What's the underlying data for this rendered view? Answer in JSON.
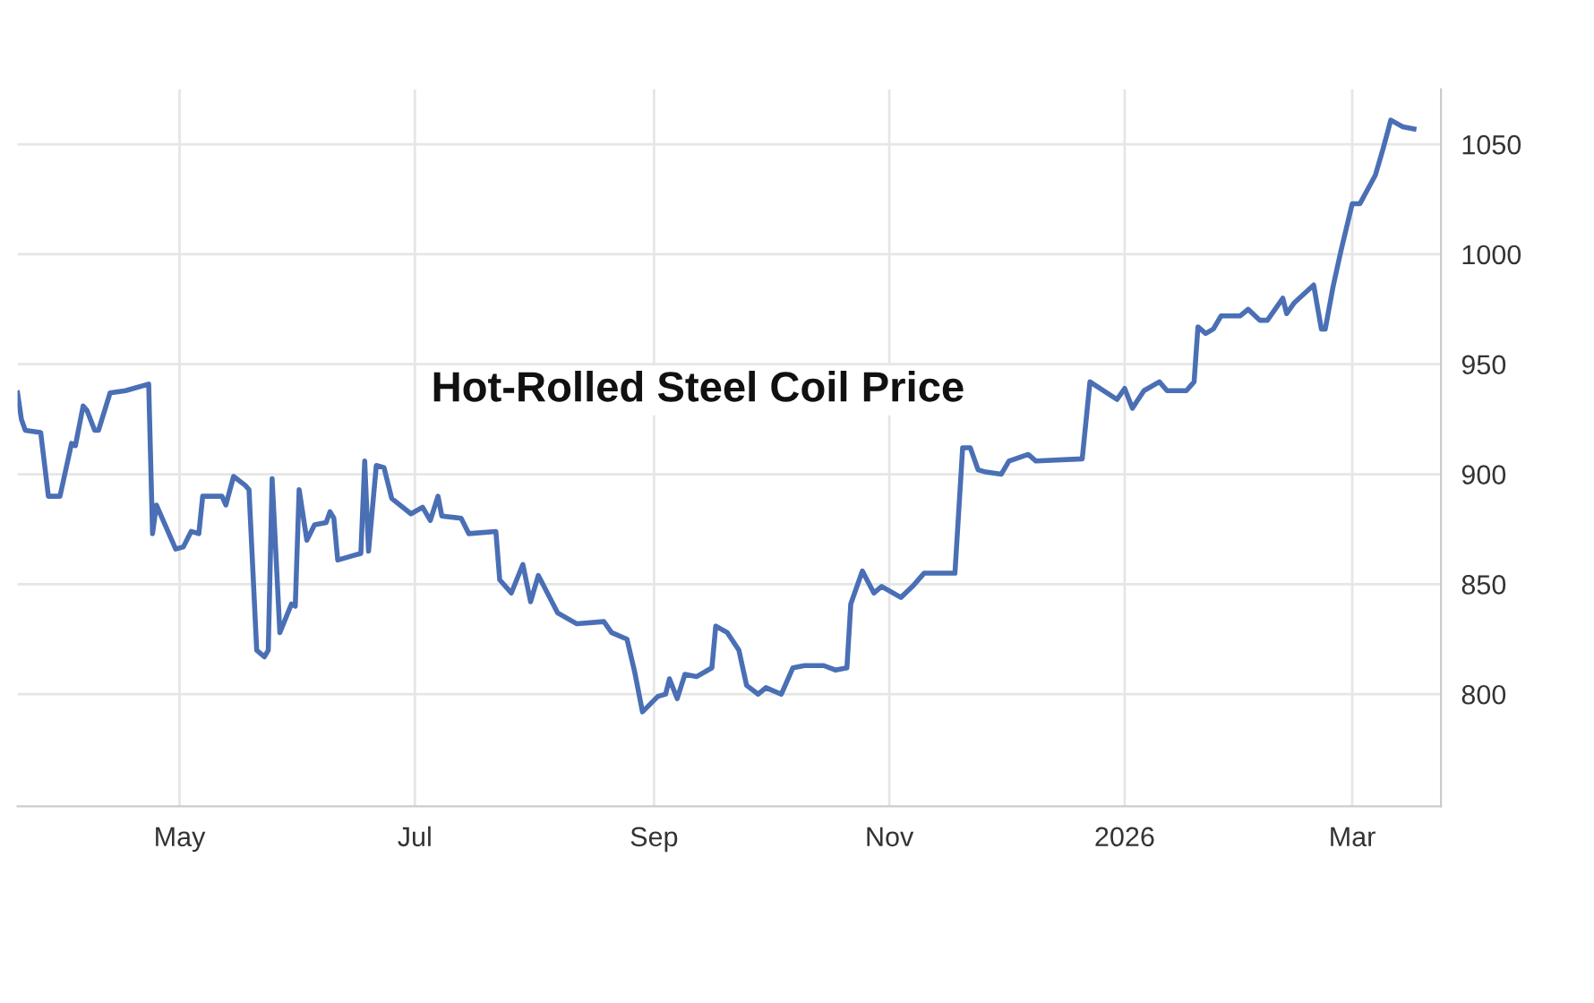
{
  "chart_data": {
    "type": "line",
    "title": "Hot-Rolled Steel Coil Price",
    "color": "#4a6fb5",
    "grid": true,
    "legend": false,
    "marker": "none",
    "line_style": "solid",
    "xlim": [
      "2025-03-20",
      "2026-03-24"
    ],
    "ylim": [
      749,
      1075
    ],
    "xticks": [
      {
        "value": "2025-05-01",
        "label": "May"
      },
      {
        "value": "2025-07-01",
        "label": "Jul"
      },
      {
        "value": "2025-09-01",
        "label": "Sep"
      },
      {
        "value": "2025-11-01",
        "label": "Nov"
      },
      {
        "value": "2026-01-01",
        "label": "2026"
      },
      {
        "value": "2026-03-01",
        "label": "Mar"
      }
    ],
    "yticks": [
      800,
      850,
      900,
      950,
      1000,
      1050
    ],
    "x": [
      "2025-03-20",
      "2025-03-21",
      "2025-03-22",
      "2025-03-26",
      "2025-03-28",
      "2025-03-31",
      "2025-04-03",
      "2025-04-04",
      "2025-04-06",
      "2025-04-07",
      "2025-04-09",
      "2025-04-10",
      "2025-04-13",
      "2025-04-17",
      "2025-04-23",
      "2025-04-24",
      "2025-04-25",
      "2025-04-27",
      "2025-04-30",
      "2025-05-02",
      "2025-05-04",
      "2025-05-06",
      "2025-05-07",
      "2025-05-12",
      "2025-05-13",
      "2025-05-15",
      "2025-05-18",
      "2025-05-19",
      "2025-05-21",
      "2025-05-23",
      "2025-05-24",
      "2025-05-25",
      "2025-05-27",
      "2025-05-30",
      "2025-05-31",
      "2025-06-01",
      "2025-06-03",
      "2025-06-05",
      "2025-06-08",
      "2025-06-09",
      "2025-06-10",
      "2025-06-11",
      "2025-06-15",
      "2025-06-17",
      "2025-06-18",
      "2025-06-19",
      "2025-06-21",
      "2025-06-23",
      "2025-06-25",
      "2025-06-30",
      "2025-07-03",
      "2025-07-05",
      "2025-07-07",
      "2025-07-08",
      "2025-07-13",
      "2025-07-15",
      "2025-07-22",
      "2025-07-23",
      "2025-07-26",
      "2025-07-29",
      "2025-07-31",
      "2025-08-02",
      "2025-08-07",
      "2025-08-12",
      "2025-08-19",
      "2025-08-21",
      "2025-08-25",
      "2025-08-27",
      "2025-08-29",
      "2025-09-02",
      "2025-09-04",
      "2025-09-05",
      "2025-09-07",
      "2025-09-09",
      "2025-09-12",
      "2025-09-16",
      "2025-09-17",
      "2025-09-20",
      "2025-09-23",
      "2025-09-25",
      "2025-09-28",
      "2025-09-30",
      "2025-10-04",
      "2025-10-07",
      "2025-10-10",
      "2025-10-15",
      "2025-10-18",
      "2025-10-21",
      "2025-10-22",
      "2025-10-25",
      "2025-10-28",
      "2025-10-30",
      "2025-11-04",
      "2025-11-07",
      "2025-11-10",
      "2025-11-18",
      "2025-11-20",
      "2025-11-22",
      "2025-11-24",
      "2025-11-26",
      "2025-11-30",
      "2025-12-02",
      "2025-12-07",
      "2025-12-09",
      "2025-12-21",
      "2025-12-23",
      "2025-12-30",
      "2026-01-01",
      "2026-01-03",
      "2026-01-06",
      "2026-01-10",
      "2026-01-12",
      "2026-01-17",
      "2026-01-19",
      "2026-01-20",
      "2026-01-22",
      "2026-01-24",
      "2026-01-26",
      "2026-01-31",
      "2026-02-02",
      "2026-02-05",
      "2026-02-07",
      "2026-02-11",
      "2026-02-12",
      "2026-02-14",
      "2026-02-19",
      "2026-02-21",
      "2026-02-22",
      "2026-02-24",
      "2026-02-26",
      "2026-03-01",
      "2026-03-03",
      "2026-03-07",
      "2026-03-09",
      "2026-03-11",
      "2026-03-14",
      "2026-03-17"
    ],
    "values": [
      937,
      925,
      920,
      919,
      890,
      890,
      914,
      913,
      931,
      929,
      920,
      920,
      937,
      938,
      941,
      873,
      886,
      878,
      866,
      867,
      874,
      873,
      890,
      890,
      886,
      899,
      895,
      893,
      820,
      817,
      820,
      898,
      828,
      841,
      840,
      893,
      870,
      877,
      878,
      883,
      880,
      861,
      863,
      864,
      906,
      865,
      904,
      903,
      889,
      882,
      885,
      879,
      890,
      881,
      880,
      873,
      874,
      852,
      846,
      859,
      842,
      854,
      837,
      832,
      833,
      828,
      825,
      810,
      792,
      799,
      800,
      807,
      798,
      809,
      808,
      812,
      831,
      828,
      820,
      804,
      800,
      803,
      800,
      812,
      813,
      813,
      811,
      812,
      841,
      856,
      846,
      849,
      844,
      849,
      855,
      855,
      912,
      912,
      902,
      901,
      900,
      906,
      909,
      906,
      907,
      942,
      934,
      939,
      930,
      938,
      942,
      938,
      938,
      942,
      967,
      964,
      966,
      972,
      972,
      975,
      970,
      970,
      980,
      973,
      978,
      986,
      966,
      966,
      985,
      1001,
      1023,
      1023,
      1036,
      1048,
      1061,
      1058,
      1057
    ]
  }
}
